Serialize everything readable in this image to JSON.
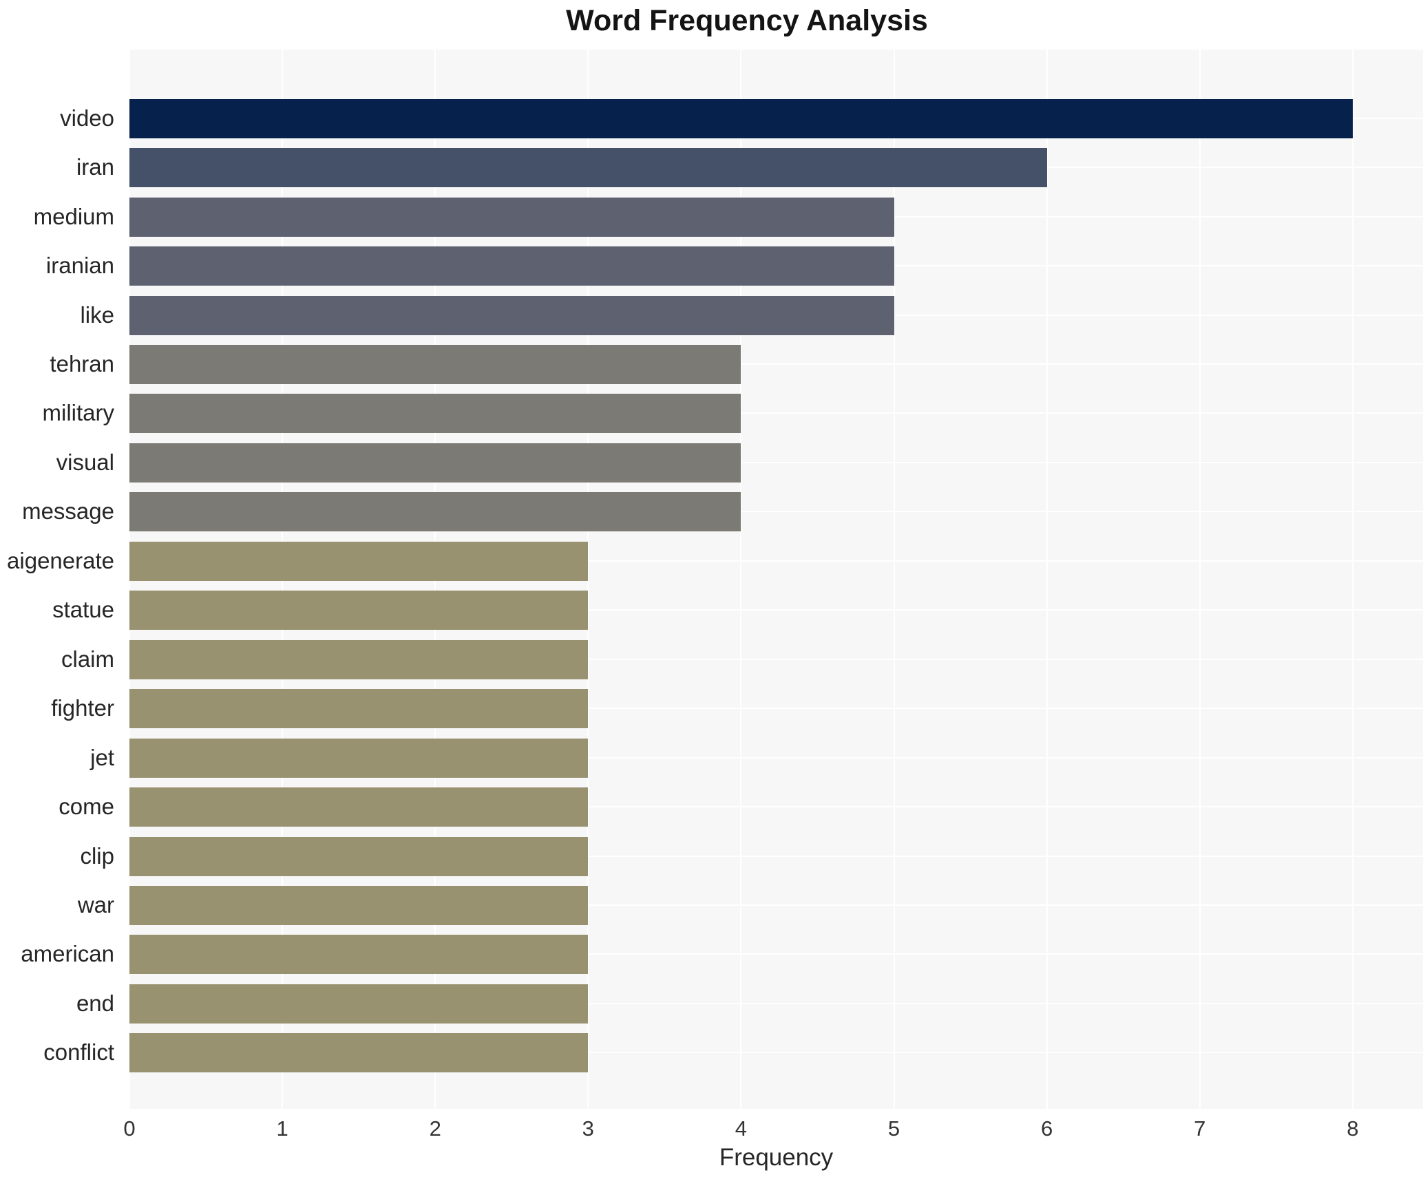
{
  "chart_data": {
    "type": "bar",
    "orientation": "horizontal",
    "title": "Word Frequency Analysis",
    "xlabel": "Frequency",
    "ylabel": "",
    "xlim": [
      0,
      8.46
    ],
    "xticks": [
      "0",
      "1",
      "2",
      "3",
      "4",
      "5",
      "6",
      "7",
      "8"
    ],
    "grid": true,
    "legend": "none",
    "plot_background_color": "#f7f7f7",
    "gridline_color": "#ffffff",
    "categories": [
      "video",
      "iran",
      "medium",
      "iranian",
      "like",
      "tehran",
      "military",
      "visual",
      "message",
      "aigenerate",
      "statue",
      "claim",
      "fighter",
      "jet",
      "come",
      "clip",
      "war",
      "american",
      "end",
      "conflict"
    ],
    "values": [
      8,
      6,
      5,
      5,
      5,
      4,
      4,
      4,
      4,
      3,
      3,
      3,
      3,
      3,
      3,
      3,
      3,
      3,
      3,
      3
    ],
    "bar_colors": [
      "#06224c",
      "#455069",
      "#5d6170",
      "#5d6170",
      "#5d6170",
      "#7b7a74",
      "#7b7a74",
      "#7b7a74",
      "#7b7a74",
      "#999271",
      "#999271",
      "#999271",
      "#999271",
      "#999271",
      "#999271",
      "#999271",
      "#999271",
      "#999271",
      "#999271",
      "#999271"
    ]
  }
}
